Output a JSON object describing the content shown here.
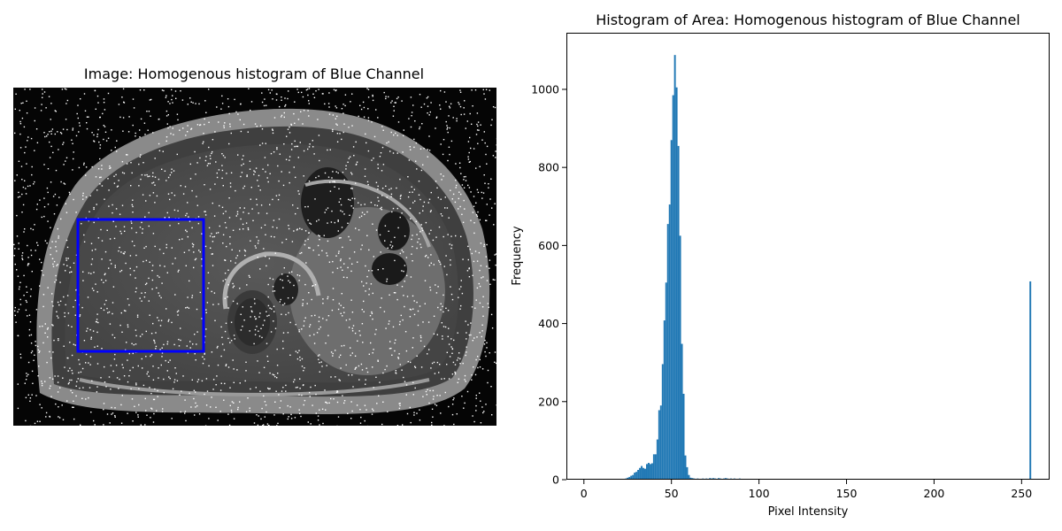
{
  "image_panel": {
    "title": "Image: Homogenous histogram of Blue Channel",
    "roi_color": "#0000ff"
  },
  "chart_data": {
    "type": "bar",
    "title": "Histogram of Area: Homogenous histogram of Blue Channel",
    "xlabel": "Pixel Intensity",
    "ylabel": "Frequency",
    "xlim": [
      -10,
      266
    ],
    "ylim": [
      0,
      1145
    ],
    "xticks": [
      0,
      50,
      100,
      150,
      200,
      250
    ],
    "yticks": [
      0,
      200,
      400,
      600,
      800,
      1000
    ],
    "bar_color": "#1f77b4",
    "bins": [
      {
        "x": 22,
        "y": 1
      },
      {
        "x": 23,
        "y": 2
      },
      {
        "x": 24,
        "y": 3
      },
      {
        "x": 25,
        "y": 5
      },
      {
        "x": 26,
        "y": 7
      },
      {
        "x": 27,
        "y": 10
      },
      {
        "x": 28,
        "y": 12
      },
      {
        "x": 29,
        "y": 18
      },
      {
        "x": 30,
        "y": 20
      },
      {
        "x": 31,
        "y": 25
      },
      {
        "x": 32,
        "y": 30
      },
      {
        "x": 33,
        "y": 35
      },
      {
        "x": 34,
        "y": 30
      },
      {
        "x": 35,
        "y": 28
      },
      {
        "x": 36,
        "y": 40
      },
      {
        "x": 37,
        "y": 43
      },
      {
        "x": 38,
        "y": 40
      },
      {
        "x": 39,
        "y": 42
      },
      {
        "x": 40,
        "y": 65
      },
      {
        "x": 41,
        "y": 65
      },
      {
        "x": 42,
        "y": 103
      },
      {
        "x": 43,
        "y": 178
      },
      {
        "x": 44,
        "y": 190
      },
      {
        "x": 45,
        "y": 296
      },
      {
        "x": 46,
        "y": 408
      },
      {
        "x": 47,
        "y": 505
      },
      {
        "x": 48,
        "y": 655
      },
      {
        "x": 49,
        "y": 705
      },
      {
        "x": 50,
        "y": 870
      },
      {
        "x": 51,
        "y": 985
      },
      {
        "x": 52,
        "y": 1088
      },
      {
        "x": 53,
        "y": 1005
      },
      {
        "x": 54,
        "y": 855
      },
      {
        "x": 55,
        "y": 625
      },
      {
        "x": 56,
        "y": 348
      },
      {
        "x": 57,
        "y": 220
      },
      {
        "x": 58,
        "y": 62
      },
      {
        "x": 59,
        "y": 32
      },
      {
        "x": 60,
        "y": 12
      },
      {
        "x": 61,
        "y": 5
      },
      {
        "x": 62,
        "y": 4
      },
      {
        "x": 63,
        "y": 3
      },
      {
        "x": 64,
        "y": 2
      },
      {
        "x": 65,
        "y": 3
      },
      {
        "x": 66,
        "y": 2
      },
      {
        "x": 67,
        "y": 2
      },
      {
        "x": 68,
        "y": 3
      },
      {
        "x": 69,
        "y": 2
      },
      {
        "x": 70,
        "y": 3
      },
      {
        "x": 71,
        "y": 2
      },
      {
        "x": 72,
        "y": 4
      },
      {
        "x": 73,
        "y": 3
      },
      {
        "x": 74,
        "y": 4
      },
      {
        "x": 75,
        "y": 3
      },
      {
        "x": 76,
        "y": 2
      },
      {
        "x": 77,
        "y": 4
      },
      {
        "x": 78,
        "y": 3
      },
      {
        "x": 79,
        "y": 2
      },
      {
        "x": 80,
        "y": 3
      },
      {
        "x": 81,
        "y": 4
      },
      {
        "x": 82,
        "y": 3
      },
      {
        "x": 83,
        "y": 2
      },
      {
        "x": 84,
        "y": 3
      },
      {
        "x": 85,
        "y": 2
      },
      {
        "x": 86,
        "y": 3
      },
      {
        "x": 87,
        "y": 2
      },
      {
        "x": 88,
        "y": 2
      },
      {
        "x": 89,
        "y": 3
      },
      {
        "x": 90,
        "y": 2
      },
      {
        "x": 91,
        "y": 2
      },
      {
        "x": 92,
        "y": 1
      },
      {
        "x": 93,
        "y": 2
      },
      {
        "x": 94,
        "y": 1
      },
      {
        "x": 95,
        "y": 2
      },
      {
        "x": 96,
        "y": 1
      },
      {
        "x": 97,
        "y": 1
      },
      {
        "x": 98,
        "y": 1
      },
      {
        "x": 100,
        "y": 1
      },
      {
        "x": 102,
        "y": 1
      },
      {
        "x": 255,
        "y": 508
      }
    ]
  }
}
